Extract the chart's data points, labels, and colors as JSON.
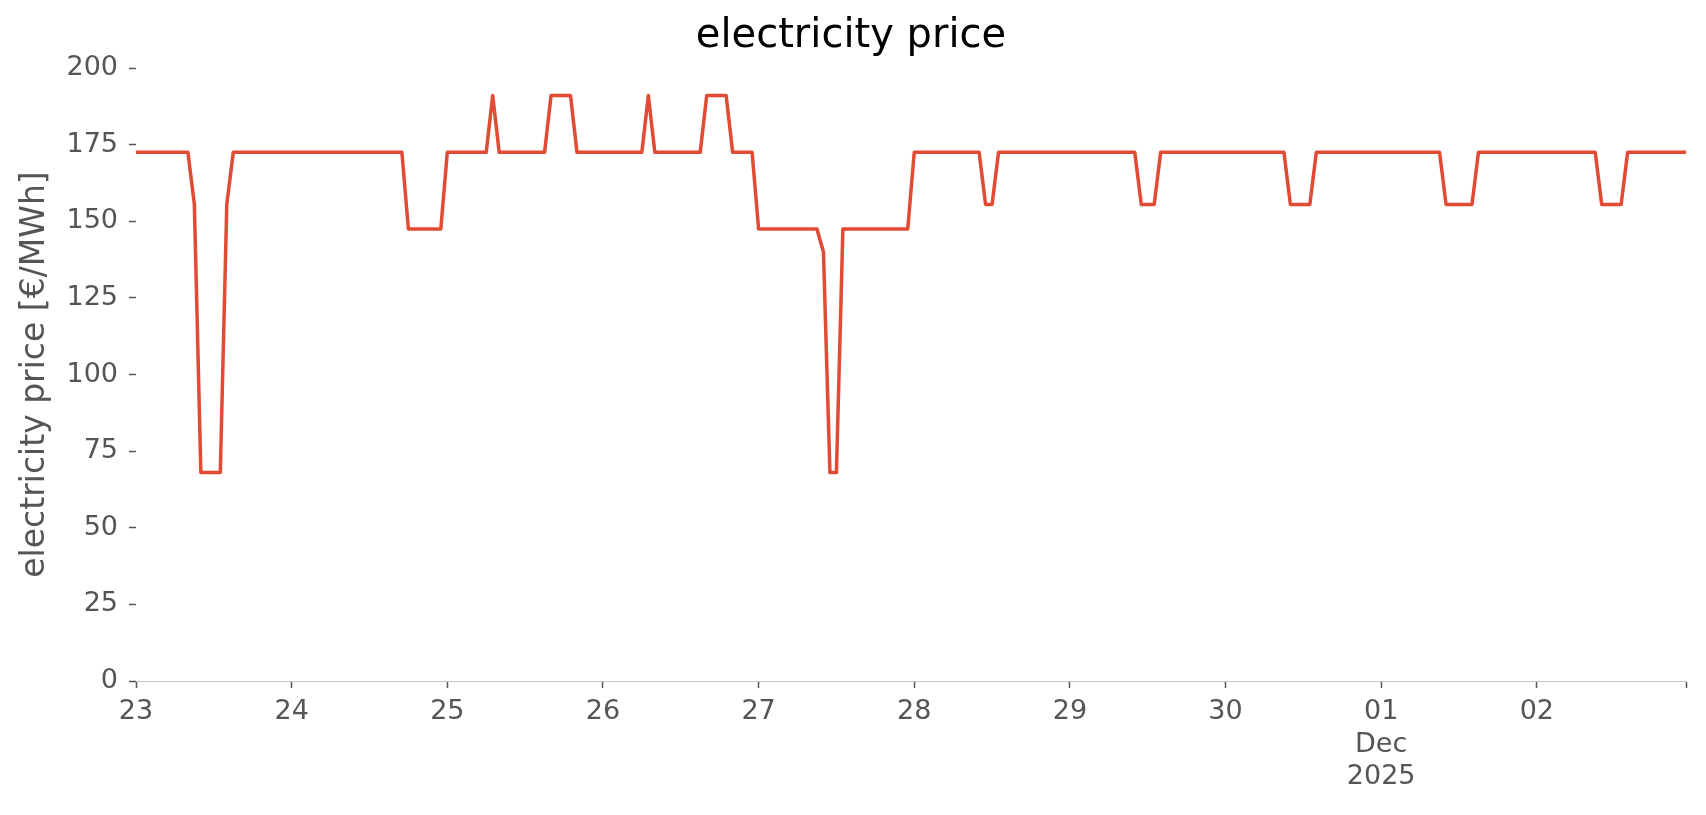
{
  "chart_data": {
    "type": "line",
    "title": "electricity price",
    "ylabel": "electricity price [€/MWh]",
    "x": [
      "2025-11-23T00:00",
      "2025-11-23T08:00",
      "2025-11-23T09:00",
      "2025-11-23T10:00",
      "2025-11-23T13:00",
      "2025-11-23T14:00",
      "2025-11-23T15:00",
      "2025-11-24T17:00",
      "2025-11-24T18:00",
      "2025-11-24T23:00",
      "2025-11-25T00:00",
      "2025-11-25T06:00",
      "2025-11-25T07:00",
      "2025-11-25T08:00",
      "2025-11-25T15:00",
      "2025-11-25T16:00",
      "2025-11-25T19:00",
      "2025-11-25T20:00",
      "2025-11-26T06:00",
      "2025-11-26T07:00",
      "2025-11-26T08:00",
      "2025-11-26T15:00",
      "2025-11-26T16:00",
      "2025-11-26T19:00",
      "2025-11-26T20:00",
      "2025-11-26T23:00",
      "2025-11-27T00:00",
      "2025-11-27T09:00",
      "2025-11-27T10:00",
      "2025-11-27T11:00",
      "2025-11-27T12:00",
      "2025-11-27T13:00",
      "2025-11-27T23:00",
      "2025-11-28T00:00",
      "2025-11-28T10:00",
      "2025-11-28T11:00",
      "2025-11-28T12:00",
      "2025-11-28T13:00",
      "2025-11-29T10:00",
      "2025-11-29T11:00",
      "2025-11-29T13:00",
      "2025-11-29T14:00",
      "2025-11-30T09:00",
      "2025-11-30T10:00",
      "2025-11-30T13:00",
      "2025-11-30T14:00",
      "2025-12-01T09:00",
      "2025-12-01T10:00",
      "2025-12-01T14:00",
      "2025-12-01T15:00",
      "2025-12-02T09:00",
      "2025-12-02T10:00",
      "2025-12-02T13:00",
      "2025-12-02T14:00",
      "2025-12-02T23:00"
    ],
    "values": [
      172.5,
      172.5,
      155.5,
      68,
      68,
      155.5,
      172.5,
      172.5,
      147.5,
      147.5,
      172.5,
      172.5,
      191,
      172.5,
      172.5,
      191,
      191,
      172.5,
      172.5,
      191,
      172.5,
      172.5,
      191,
      191,
      172.5,
      172.5,
      147.5,
      147.5,
      140,
      68,
      68,
      147.5,
      147.5,
      172.5,
      172.5,
      155.5,
      155.5,
      172.5,
      172.5,
      155.5,
      155.5,
      172.5,
      172.5,
      155.5,
      155.5,
      172.5,
      172.5,
      155.5,
      155.5,
      172.5,
      172.5,
      155.5,
      155.5,
      172.5,
      172.5
    ],
    "color": "#e24a33",
    "xlim": [
      "2025-11-23T00:00",
      "2025-12-02T23:00"
    ],
    "xticks": [
      {
        "value": "2025-11-23",
        "label": "23"
      },
      {
        "value": "2025-11-24",
        "label": "24"
      },
      {
        "value": "2025-11-25",
        "label": "25"
      },
      {
        "value": "2025-11-26",
        "label": "26"
      },
      {
        "value": "2025-11-27",
        "label": "27"
      },
      {
        "value": "2025-11-28",
        "label": "28"
      },
      {
        "value": "2025-11-29",
        "label": "29"
      },
      {
        "value": "2025-11-30",
        "label": "30"
      },
      {
        "value": "2025-12-01",
        "label": "01\nDec\n2025"
      },
      {
        "value": "2025-12-02",
        "label": "02"
      },
      {
        "value": "2025-12-02T23:00",
        "label": null
      }
    ],
    "ylim": [
      0,
      200
    ],
    "yticks": [
      0,
      25,
      50,
      75,
      100,
      125,
      150,
      175,
      200
    ],
    "grid": false,
    "legend": false,
    "marker": "none",
    "line_style": "solid"
  }
}
